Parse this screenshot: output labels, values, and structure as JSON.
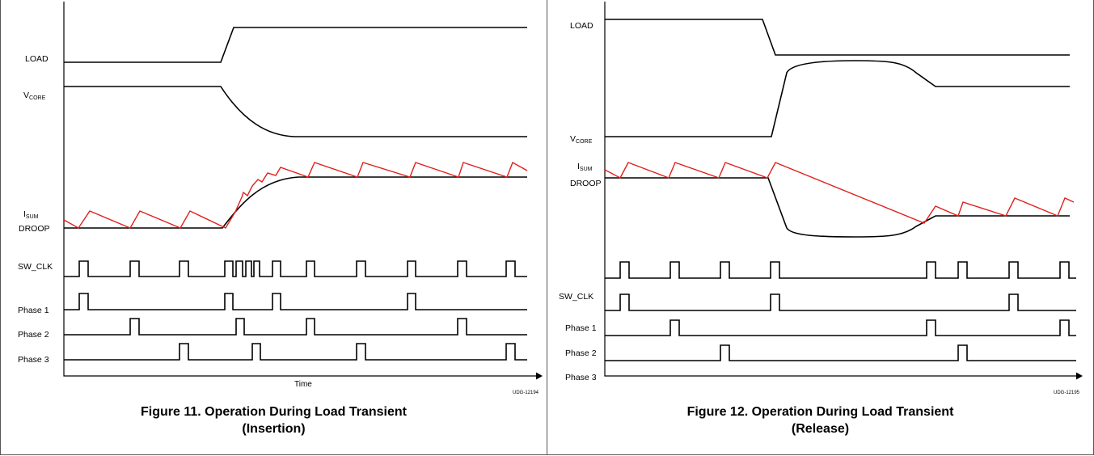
{
  "figure11": {
    "signals": {
      "load": "LOAD",
      "vcore_main": "V",
      "vcore_sub": "CORE",
      "isum_main": "I",
      "isum_sub": "SUM",
      "droop": "DROOP",
      "sw_clk": "SW_CLK",
      "phase1": "Phase 1",
      "phase2": "Phase 2",
      "phase3": "Phase 3"
    },
    "x_axis_label": "Time",
    "code": "UDG-12194",
    "caption_line1": "Figure 11. Operation During Load Transient",
    "caption_line2": "(Insertion)"
  },
  "figure12": {
    "signals": {
      "load": "LOAD",
      "vcore_main": "V",
      "vcore_sub": "CORE",
      "isum_main": "I",
      "isum_sub": "SUM",
      "droop": "DROOP",
      "sw_clk": "SW_CLK",
      "phase1": "Phase 1",
      "phase2": "Phase 2",
      "phase3": "Phase 3"
    },
    "code": "UDG-12195",
    "caption_line1": "Figure 12. Operation During Load Transient",
    "caption_line2": "(Release)"
  },
  "colors": {
    "trace": "#000000",
    "isum_trace": "#e0201c"
  }
}
